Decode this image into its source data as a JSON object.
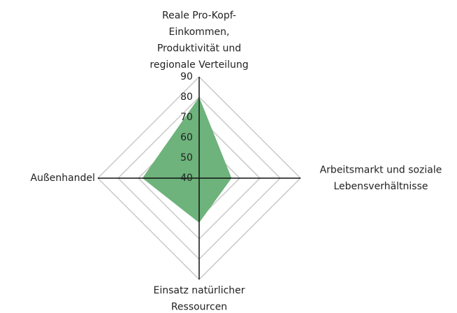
{
  "chart_data": {
    "type": "radar",
    "categories": [
      [
        "Reale Pro-Kopf-",
        "Einkommen,",
        "Produktivität und",
        "regionale Verteilung"
      ],
      [
        "Arbeitsmarkt und soziale",
        "Lebensverhältnisse"
      ],
      [
        "Einsatz natürlicher",
        "Ressourcen"
      ],
      [
        "Außenhandel"
      ]
    ],
    "values": [
      80,
      56,
      62,
      68
    ],
    "color": "#6db37b",
    "rlim": [
      40,
      90
    ],
    "rticks": [
      40,
      50,
      60,
      70,
      80,
      90
    ],
    "grid": true
  }
}
